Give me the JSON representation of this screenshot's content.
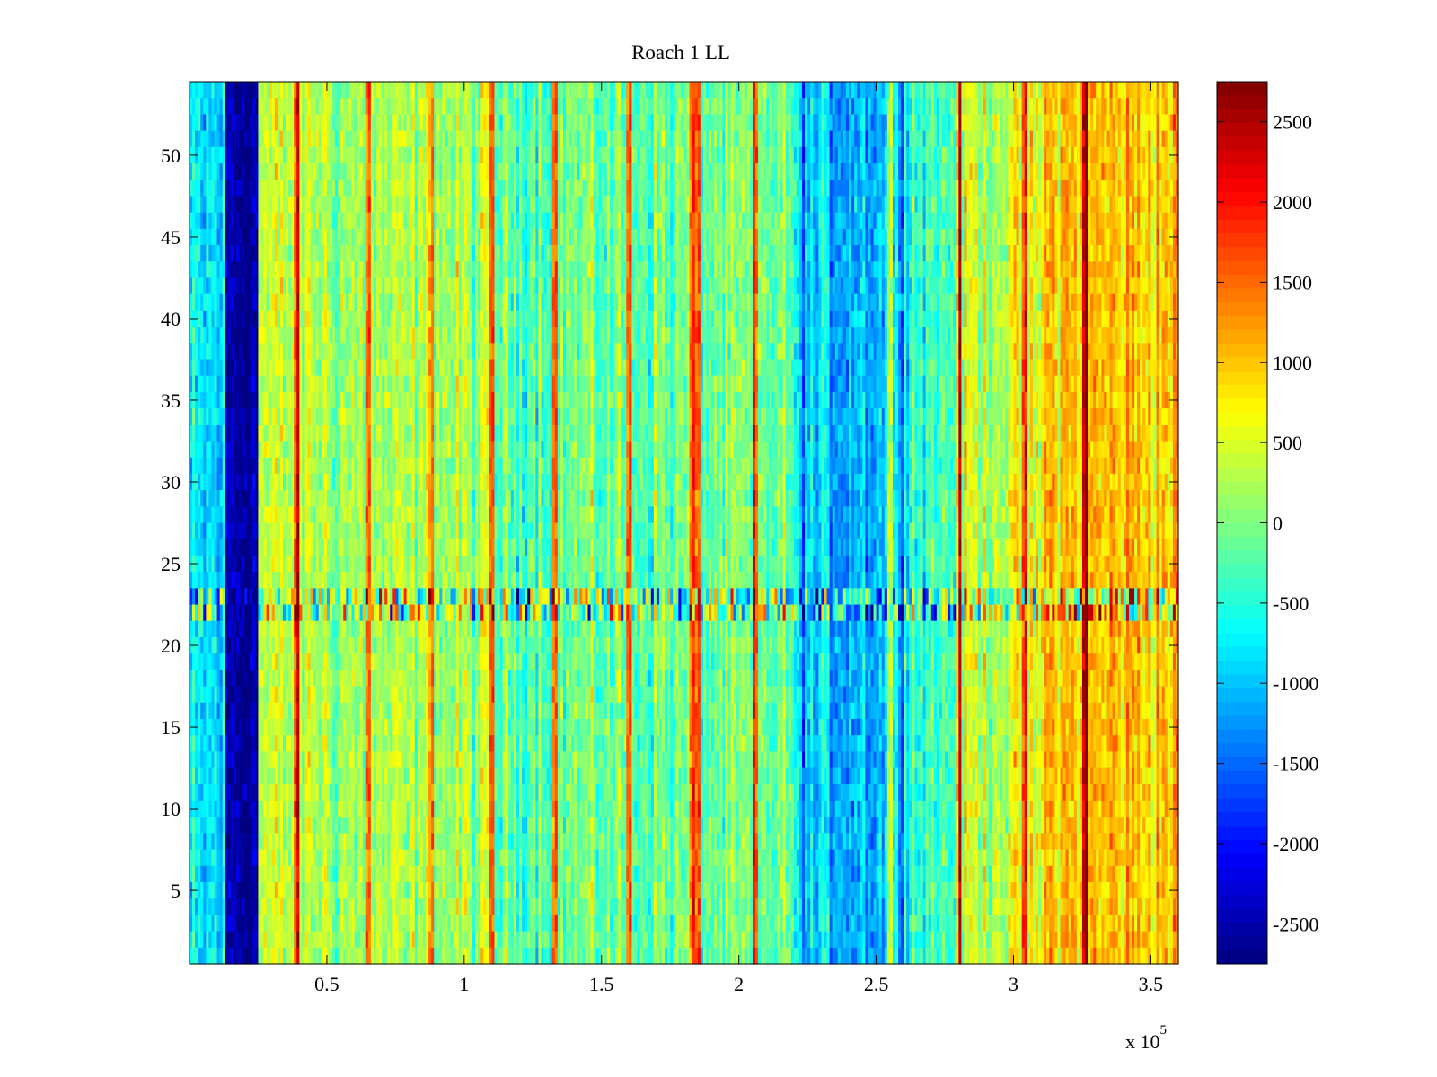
{
  "chart_data": {
    "type": "heatmap",
    "title": "Roach 1 LL",
    "xlabel": "",
    "ylabel": "",
    "x_multiplier_label": {
      "base": "x 10",
      "exponent": "5"
    },
    "xlim": [
      0,
      3.6
    ],
    "ylim": [
      0.5,
      54.5
    ],
    "x_ticks": [
      0.5,
      1,
      1.5,
      2,
      2.5,
      3,
      3.5
    ],
    "x_tick_labels": [
      "0.5",
      "1",
      "1.5",
      "2",
      "2.5",
      "3",
      "3.5"
    ],
    "y_ticks": [
      5,
      10,
      15,
      20,
      25,
      30,
      35,
      40,
      45,
      50
    ],
    "y_tick_labels": [
      "5",
      "10",
      "15",
      "20",
      "25",
      "30",
      "35",
      "40",
      "45",
      "50"
    ],
    "rows": 54,
    "columns": 360,
    "colormap": "jet",
    "clim": [
      -2750,
      2750
    ],
    "colorbar_ticks": [
      2500,
      2000,
      1500,
      1000,
      500,
      0,
      -500,
      -1000,
      -1500,
      -2000,
      -2500
    ],
    "colorbar_tick_labels": [
      "2500",
      "2000",
      "1500",
      "1000",
      "500",
      "0",
      "-500",
      "-1000",
      "-1500",
      "-2000",
      "-2500"
    ],
    "column_profile": [
      {
        "x": [
          0.0,
          0.13
        ],
        "mean": -900
      },
      {
        "x": [
          0.13,
          0.25
        ],
        "mean": -2500
      },
      {
        "x": [
          0.25,
          0.5
        ],
        "mean": 300
      },
      {
        "x": [
          0.5,
          1.1
        ],
        "mean": 150
      },
      {
        "x": [
          1.1,
          2.2
        ],
        "mean": -100
      },
      {
        "x": [
          2.2,
          2.6
        ],
        "mean": -1000
      },
      {
        "x": [
          2.6,
          2.8
        ],
        "mean": -300
      },
      {
        "x": [
          2.8,
          3.1
        ],
        "mean": 400
      },
      {
        "x": [
          3.1,
          3.6
        ],
        "mean": 1000
      }
    ],
    "noisy_band_rows": [
      21.5,
      23.5
    ],
    "vertical_streaks_x": [
      0.39,
      0.65,
      0.88,
      1.1,
      1.33,
      1.6,
      1.83,
      1.85,
      2.06,
      2.55,
      2.8,
      3.04,
      3.26
    ]
  }
}
